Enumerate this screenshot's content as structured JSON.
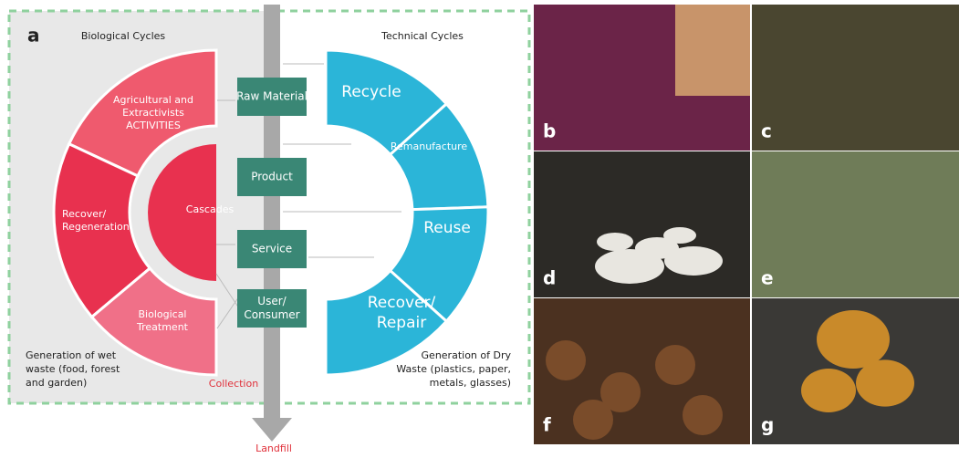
{
  "panel_a": {
    "label": "a",
    "biological_title": "Biological Cycles",
    "technical_title": "Technical Cycles",
    "biological_segments": [
      [
        "Agricultural and",
        "Extractivists",
        "ACTIVITIES"
      ],
      [
        "Recover/",
        "Regeneration"
      ],
      [
        "Biological",
        "Treatment"
      ]
    ],
    "cascades": "Cascades",
    "technical_segments": [
      [
        "Recycle"
      ],
      [
        "Remanufacture"
      ],
      [
        "Reuse"
      ],
      [
        "Recover/",
        "Repair"
      ]
    ],
    "boxes": [
      [
        "Raw Material"
      ],
      [
        "Product"
      ],
      [
        "Service"
      ],
      [
        "User/",
        "Consumer"
      ]
    ],
    "wet_waste": [
      "Generation of wet",
      "waste (food, forest",
      "and garden)"
    ],
    "dry_waste": [
      "Generation of Dry",
      "Waste (plastics, paper,",
      "metals, glasses)"
    ],
    "collection": "Collection",
    "landfill": "Landfill"
  },
  "photos": [
    {
      "label": "b"
    },
    {
      "label": "c"
    },
    {
      "label": "d"
    },
    {
      "label": "e"
    },
    {
      "label": "f"
    },
    {
      "label": "g"
    }
  ]
}
